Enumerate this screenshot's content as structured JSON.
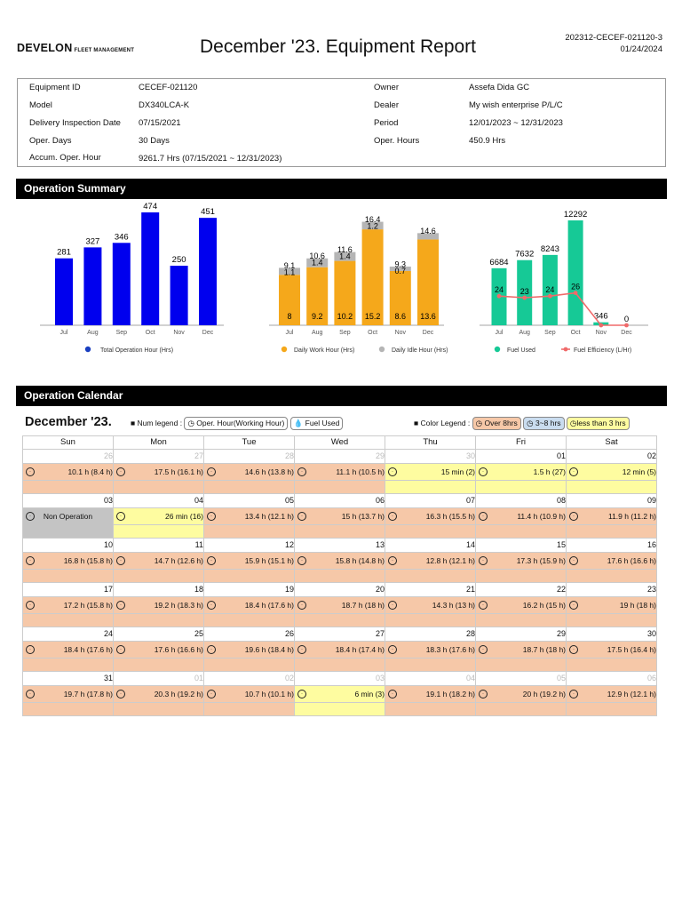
{
  "header": {
    "logo_main": "DEVELON",
    "logo_sub": "FLEET MANAGEMENT",
    "title": "December '23. Equipment Report",
    "report_id": "202312-CECEF-021120-3",
    "report_date": "01/24/2024"
  },
  "info": {
    "equipment_id_label": "Equipment ID",
    "equipment_id": "CECEF-021120",
    "model_label": "Model",
    "model": "DX340LCA-K",
    "delivery_label": "Delivery Inspection Date",
    "delivery": "07/15/2021",
    "oper_days_label": "Oper. Days",
    "oper_days": "30 Days",
    "accum_label": "Accum. Oper. Hour",
    "accum": "9261.7 Hrs (07/15/2021 ~ 12/31/2023)",
    "owner_label": "Owner",
    "owner": "Assefa Dida GC",
    "dealer_label": "Dealer",
    "dealer": "My wish enterprise P/L/C",
    "period_label": "Period",
    "period": "12/01/2023 ~ 12/31/2023",
    "oper_hours_label": "Oper. Hours",
    "oper_hours": "450.9 Hrs"
  },
  "sections": {
    "summary": "Operation Summary",
    "calendar": "Operation Calendar"
  },
  "chart_data": [
    {
      "type": "bar",
      "categories": [
        "Jul",
        "Aug",
        "Sep",
        "Oct",
        "Nov",
        "Dec"
      ],
      "series": [
        {
          "name": "Total Operation Hour (Hrs)",
          "values": [
            281,
            327,
            346,
            474,
            250,
            451
          ],
          "color": "#0000ee"
        }
      ]
    },
    {
      "type": "bar",
      "stacked": true,
      "categories": [
        "Jul",
        "Aug",
        "Sep",
        "Oct",
        "Nov",
        "Dec"
      ],
      "series": [
        {
          "name": "Daily Work Hour (Hrs)",
          "values": [
            8,
            9.2,
            10.2,
            15.2,
            8.6,
            13.6
          ],
          "color": "#f5a81b"
        },
        {
          "name": "Daily Idle Hour (Hrs)",
          "values": [
            1.1,
            1.4,
            1.4,
            1.2,
            0.7,
            1.0
          ],
          "color": "#b5b5b5"
        }
      ],
      "totals": [
        9.1,
        10.6,
        11.6,
        16.4,
        9.3,
        14.6
      ],
      "total_labels": [
        "9.1",
        "10.6",
        "11.6",
        "16.4",
        "9.3",
        "14.6"
      ],
      "idle_labels": [
        "1.1",
        "1.4",
        "1.4",
        "1.2",
        "0.7",
        ""
      ],
      "work_labels": [
        "8",
        "9.2",
        "10.2",
        "15.2",
        "8.6",
        "13.6"
      ]
    },
    {
      "type": "bar+line",
      "categories": [
        "Jul",
        "Aug",
        "Sep",
        "Oct",
        "Nov",
        "Dec"
      ],
      "series": [
        {
          "name": "Fuel Used",
          "values": [
            6684,
            7632,
            8243,
            12292,
            346,
            0
          ],
          "color": "#16c996"
        },
        {
          "name": "Fuel Efficiency (L/Hr)",
          "values": [
            24,
            23,
            24,
            26,
            0,
            0
          ],
          "color": "#f06a6a"
        }
      ],
      "bar_labels": [
        "6684",
        "7632",
        "8243",
        "12292",
        "346",
        "0"
      ],
      "line_labels": [
        "24",
        "23",
        "24",
        "26",
        "",
        ""
      ]
    }
  ],
  "calendar": {
    "month_title": "December '23.",
    "num_legend_label": "Num legend :",
    "num_legend_hour": "Oper. Hour(Working Hour)",
    "num_legend_fuel": "Fuel Used",
    "color_legend_label": "Color Legend :",
    "color_over": "Over 8hrs",
    "color_mid": "3~8 hrs",
    "color_low": "less than 3 hrs",
    "weekdays": [
      "Sun",
      "Mon",
      "Tue",
      "Wed",
      "Thu",
      "Fri",
      "Sat"
    ],
    "weeks": [
      [
        {
          "d": "26",
          "o": true,
          "h": "10.1 h (8.4 h)",
          "c": "over"
        },
        {
          "d": "27",
          "o": true,
          "h": "17.5 h (16.1 h)",
          "c": "over"
        },
        {
          "d": "28",
          "o": true,
          "h": "14.6 h (13.8 h)",
          "c": "over"
        },
        {
          "d": "29",
          "o": true,
          "h": "11.1 h (10.5 h)",
          "c": "over"
        },
        {
          "d": "30",
          "o": true,
          "h": "15 min (2)",
          "c": "low"
        },
        {
          "d": "01",
          "o": false,
          "h": "1.5 h (27)",
          "c": "low"
        },
        {
          "d": "02",
          "o": false,
          "h": "12 min (5)",
          "c": "low"
        }
      ],
      [
        {
          "d": "03",
          "o": false,
          "h": "Non Operation",
          "c": "non"
        },
        {
          "d": "04",
          "o": false,
          "h": "26 min (16)",
          "c": "low"
        },
        {
          "d": "05",
          "o": false,
          "h": "13.4 h (12.1 h)",
          "c": "over"
        },
        {
          "d": "06",
          "o": false,
          "h": "15 h (13.7 h)",
          "c": "over"
        },
        {
          "d": "07",
          "o": false,
          "h": "16.3 h (15.5 h)",
          "c": "over"
        },
        {
          "d": "08",
          "o": false,
          "h": "11.4 h (10.9 h)",
          "c": "over"
        },
        {
          "d": "09",
          "o": false,
          "h": "11.9 h (11.2 h)",
          "c": "over"
        }
      ],
      [
        {
          "d": "10",
          "o": false,
          "h": "16.8 h (15.8 h)",
          "c": "over"
        },
        {
          "d": "11",
          "o": false,
          "h": "14.7 h (12.6 h)",
          "c": "over"
        },
        {
          "d": "12",
          "o": false,
          "h": "15.9 h (15.1 h)",
          "c": "over"
        },
        {
          "d": "13",
          "o": false,
          "h": "15.8 h (14.8 h)",
          "c": "over"
        },
        {
          "d": "14",
          "o": false,
          "h": "12.8 h (12.1 h)",
          "c": "over"
        },
        {
          "d": "15",
          "o": false,
          "h": "17.3 h (15.9 h)",
          "c": "over"
        },
        {
          "d": "16",
          "o": false,
          "h": "17.6 h (16.6 h)",
          "c": "over"
        }
      ],
      [
        {
          "d": "17",
          "o": false,
          "h": "17.2 h (15.8 h)",
          "c": "over"
        },
        {
          "d": "18",
          "o": false,
          "h": "19.2 h (18.3 h)",
          "c": "over"
        },
        {
          "d": "19",
          "o": false,
          "h": "18.4 h (17.6 h)",
          "c": "over"
        },
        {
          "d": "20",
          "o": false,
          "h": "18.7 h (18 h)",
          "c": "over"
        },
        {
          "d": "21",
          "o": false,
          "h": "14.3 h (13 h)",
          "c": "over"
        },
        {
          "d": "22",
          "o": false,
          "h": "16.2 h (15 h)",
          "c": "over"
        },
        {
          "d": "23",
          "o": false,
          "h": "19 h (18 h)",
          "c": "over"
        }
      ],
      [
        {
          "d": "24",
          "o": false,
          "h": "18.4 h (17.6 h)",
          "c": "over"
        },
        {
          "d": "25",
          "o": false,
          "h": "17.6 h (16.6 h)",
          "c": "over"
        },
        {
          "d": "26",
          "o": false,
          "h": "19.6 h (18.4 h)",
          "c": "over"
        },
        {
          "d": "27",
          "o": false,
          "h": "18.4 h (17.4 h)",
          "c": "over"
        },
        {
          "d": "28",
          "o": false,
          "h": "18.3 h (17.6 h)",
          "c": "over"
        },
        {
          "d": "29",
          "o": false,
          "h": "18.7 h (18 h)",
          "c": "over"
        },
        {
          "d": "30",
          "o": false,
          "h": "17.5 h (16.4 h)",
          "c": "over"
        }
      ],
      [
        {
          "d": "31",
          "o": false,
          "h": "19.7 h (17.8 h)",
          "c": "over"
        },
        {
          "d": "01",
          "o": true,
          "h": "20.3 h (19.2 h)",
          "c": "over"
        },
        {
          "d": "02",
          "o": true,
          "h": "10.7 h (10.1 h)",
          "c": "over"
        },
        {
          "d": "03",
          "o": true,
          "h": "6 min (3)",
          "c": "low"
        },
        {
          "d": "04",
          "o": true,
          "h": "19.1 h (18.2 h)",
          "c": "over"
        },
        {
          "d": "05",
          "o": true,
          "h": "20 h (19.2 h)",
          "c": "over"
        },
        {
          "d": "06",
          "o": true,
          "h": "12.9 h (12.1 h)",
          "c": "over"
        }
      ]
    ]
  }
}
